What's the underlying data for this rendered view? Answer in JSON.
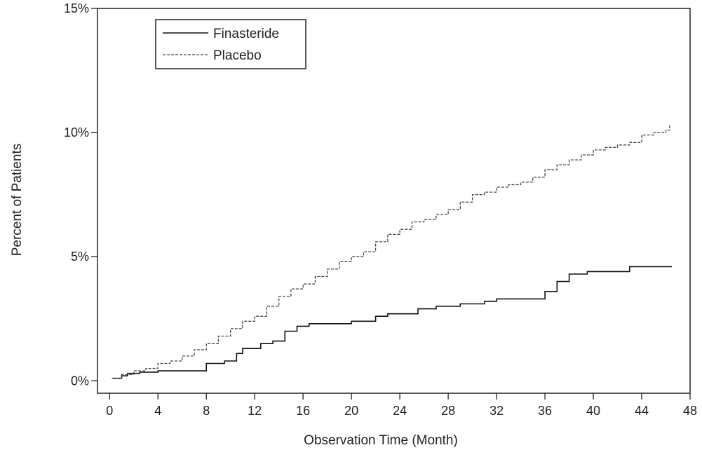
{
  "chart_data": {
    "type": "line",
    "xlabel": "Observation Time (Month)",
    "ylabel": "Percent of Patients",
    "xlim": [
      -1,
      48
    ],
    "ylim": [
      -0.5,
      15
    ],
    "xticks": [
      0,
      4,
      8,
      12,
      16,
      20,
      24,
      28,
      32,
      36,
      40,
      44,
      48
    ],
    "yticks": [
      0,
      5,
      10,
      15
    ],
    "xtick_labels": [
      "0",
      "4",
      "8",
      "12",
      "16",
      "20",
      "24",
      "28",
      "32",
      "36",
      "40",
      "44",
      "48"
    ],
    "ytick_labels": [
      "0%",
      "5%",
      "10%",
      "15%"
    ],
    "grid": false,
    "legend_position": "top-left",
    "series": [
      {
        "name": "Finasteride",
        "line_style": "solid",
        "color": "#111111",
        "points": [
          [
            0.2,
            0.1
          ],
          [
            1,
            0.2
          ],
          [
            1.5,
            0.3
          ],
          [
            2.5,
            0.35
          ],
          [
            4,
            0.4
          ],
          [
            7.6,
            0.4
          ],
          [
            8,
            0.7
          ],
          [
            9.5,
            0.8
          ],
          [
            10.5,
            1.1
          ],
          [
            11,
            1.3
          ],
          [
            12.5,
            1.5
          ],
          [
            13.5,
            1.6
          ],
          [
            14.5,
            2.0
          ],
          [
            15.5,
            2.2
          ],
          [
            16.5,
            2.3
          ],
          [
            20,
            2.4
          ],
          [
            22,
            2.6
          ],
          [
            23,
            2.7
          ],
          [
            25.5,
            2.9
          ],
          [
            27,
            3.0
          ],
          [
            29,
            3.1
          ],
          [
            31,
            3.2
          ],
          [
            32,
            3.3
          ],
          [
            35,
            3.3
          ],
          [
            36,
            3.6
          ],
          [
            37,
            4.0
          ],
          [
            38,
            4.3
          ],
          [
            39.5,
            4.4
          ],
          [
            42,
            4.4
          ],
          [
            43,
            4.6
          ],
          [
            46.5,
            4.6
          ]
        ]
      },
      {
        "name": "Placebo",
        "line_style": "dashed",
        "color": "#444444",
        "points": [
          [
            0.2,
            0.1
          ],
          [
            1,
            0.25
          ],
          [
            2,
            0.4
          ],
          [
            3,
            0.5
          ],
          [
            4,
            0.7
          ],
          [
            5,
            0.8
          ],
          [
            6,
            1.0
          ],
          [
            7,
            1.25
          ],
          [
            8,
            1.5
          ],
          [
            9,
            1.8
          ],
          [
            10,
            2.1
          ],
          [
            11,
            2.4
          ],
          [
            12,
            2.6
          ],
          [
            13,
            3.0
          ],
          [
            14,
            3.4
          ],
          [
            15,
            3.7
          ],
          [
            16,
            3.9
          ],
          [
            17,
            4.2
          ],
          [
            18,
            4.5
          ],
          [
            19,
            4.8
          ],
          [
            20,
            5.0
          ],
          [
            21,
            5.2
          ],
          [
            22,
            5.6
          ],
          [
            23,
            5.9
          ],
          [
            24,
            6.1
          ],
          [
            25,
            6.4
          ],
          [
            26,
            6.5
          ],
          [
            27,
            6.7
          ],
          [
            28,
            6.9
          ],
          [
            29,
            7.2
          ],
          [
            30,
            7.5
          ],
          [
            31,
            7.6
          ],
          [
            32,
            7.8
          ],
          [
            33,
            7.9
          ],
          [
            34,
            8.0
          ],
          [
            35,
            8.2
          ],
          [
            36,
            8.5
          ],
          [
            37,
            8.7
          ],
          [
            38,
            8.9
          ],
          [
            39,
            9.1
          ],
          [
            40,
            9.3
          ],
          [
            41,
            9.4
          ],
          [
            42,
            9.5
          ],
          [
            43,
            9.6
          ],
          [
            44,
            9.9
          ],
          [
            45,
            10.0
          ],
          [
            46,
            10.1
          ],
          [
            46.3,
            10.3
          ]
        ]
      }
    ]
  }
}
